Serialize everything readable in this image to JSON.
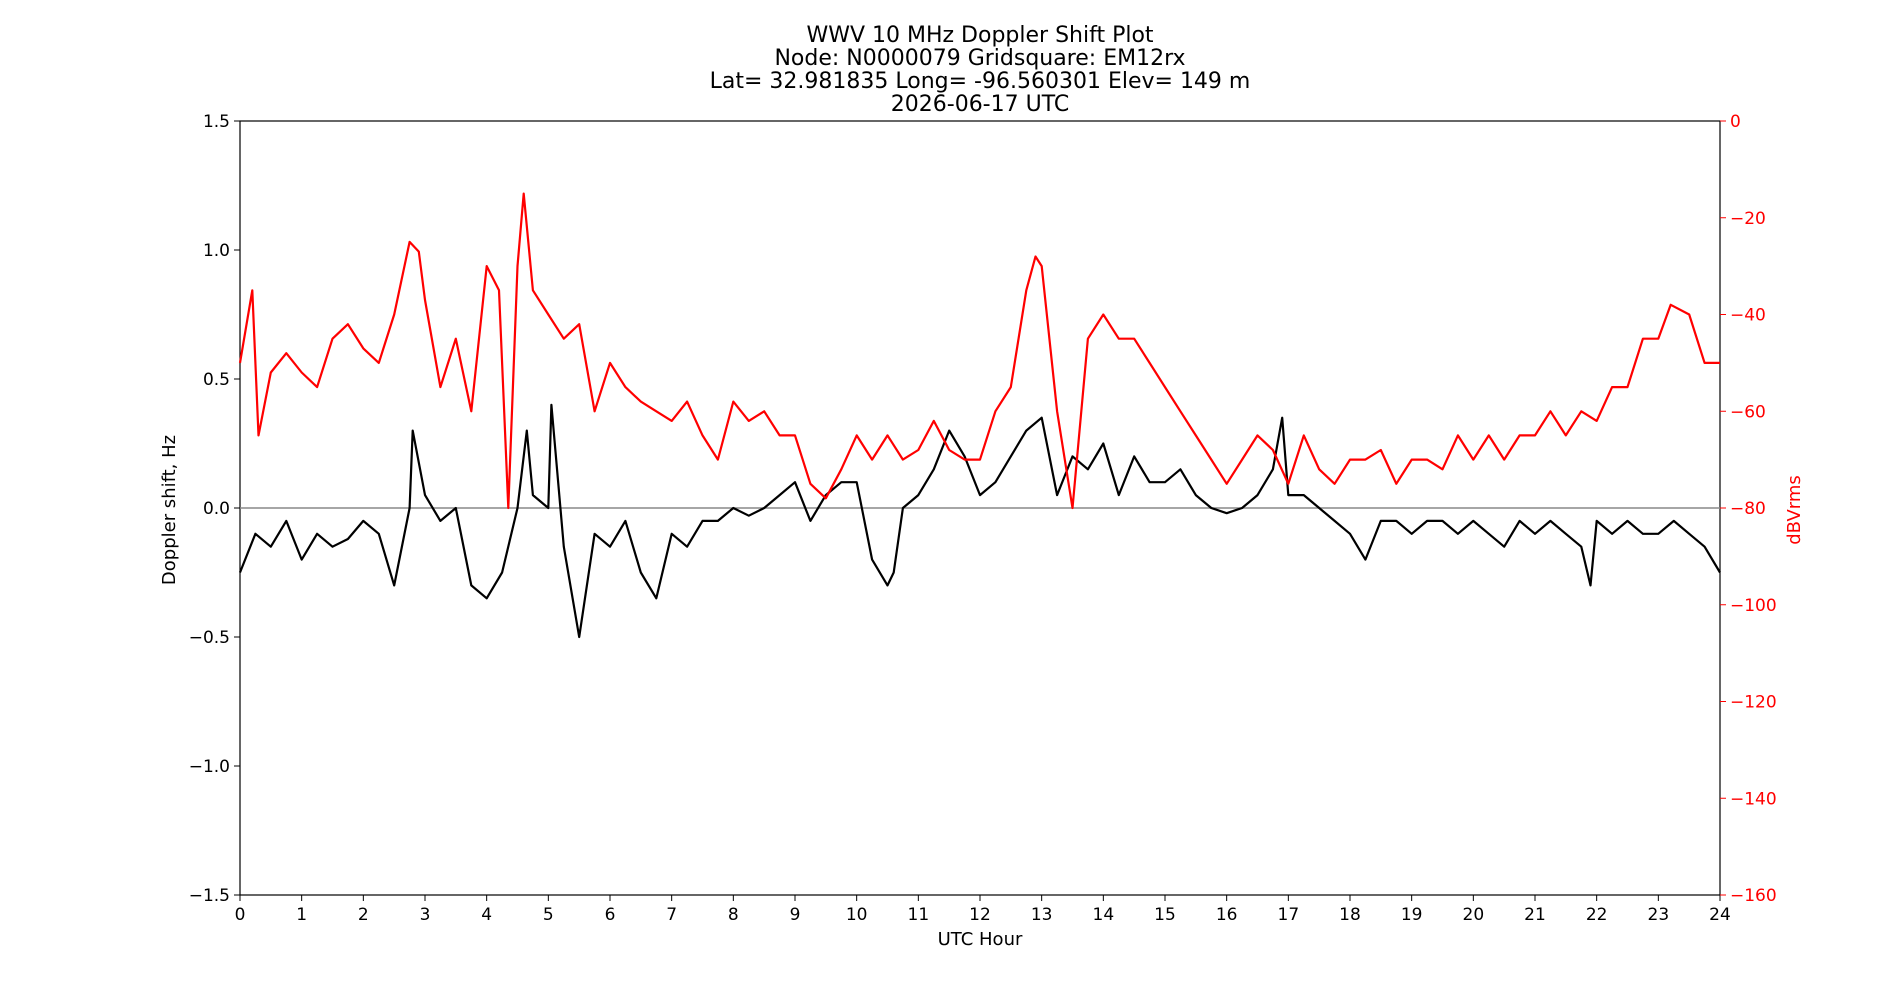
{
  "chart_data": {
    "type": "line",
    "title_lines": [
      "WWV 10 MHz Doppler Shift Plot",
      "Node:  N0000079     Gridsquare:  EM12rx",
      "Lat= 32.981835    Long= -96.560301    Elev= 149 m",
      "2026-06-17  UTC"
    ],
    "xlabel": "UTC Hour",
    "ylabel": "Doppler shift, Hz",
    "y2label": "dBVrms",
    "xlim": [
      0,
      24
    ],
    "ylim": [
      -1.5,
      1.5
    ],
    "y2lim": [
      -160,
      0
    ],
    "x_ticks": [
      "0",
      "1",
      "2",
      "3",
      "4",
      "5",
      "6",
      "7",
      "8",
      "9",
      "10",
      "11",
      "12",
      "13",
      "14",
      "15",
      "16",
      "17",
      "18",
      "19",
      "20",
      "21",
      "22",
      "23",
      "24"
    ],
    "y_ticks": [
      "1.5",
      "1.0",
      "0.5",
      "0.0",
      "−0.5",
      "−1.0",
      "−1.5"
    ],
    "y2_ticks": [
      "0",
      "−20",
      "−40",
      "−60",
      "−80",
      "−100",
      "−120",
      "−140",
      "−160"
    ],
    "zero_line": 0.0,
    "grid": false,
    "colors": {
      "doppler": "#000000",
      "power": "#ff0000",
      "zero_line": "#888888",
      "y2_axis": "#ff0000"
    },
    "series": [
      {
        "axis": "left",
        "x": [
          0,
          0.25,
          0.5,
          0.75,
          1,
          1.25,
          1.5,
          1.75,
          2,
          2.25,
          2.5,
          2.75,
          2.8,
          3,
          3.25,
          3.5,
          3.75,
          4,
          4.25,
          4.5,
          4.65,
          4.75,
          5,
          5.05,
          5.25,
          5.5,
          5.75,
          6,
          6.25,
          6.5,
          6.75,
          7,
          7.25,
          7.5,
          7.75,
          8,
          8.25,
          8.5,
          8.75,
          9,
          9.25,
          9.5,
          9.75,
          10,
          10.25,
          10.5,
          10.6,
          10.75,
          11,
          11.25,
          11.5,
          11.75,
          12,
          12.25,
          12.5,
          12.75,
          13,
          13.25,
          13.5,
          13.75,
          14,
          14.25,
          14.5,
          14.75,
          15,
          15.25,
          15.5,
          15.75,
          16,
          16.25,
          16.5,
          16.75,
          16.9,
          17,
          17.25,
          17.5,
          17.75,
          18,
          18.25,
          18.5,
          18.75,
          19,
          19.25,
          19.5,
          19.75,
          20,
          20.25,
          20.5,
          20.75,
          21,
          21.25,
          21.5,
          21.75,
          21.9,
          22,
          22.25,
          22.5,
          22.75,
          23,
          23.25,
          23.5,
          23.75,
          24
        ],
        "values": [
          -0.25,
          -0.1,
          -0.15,
          -0.05,
          -0.2,
          -0.1,
          -0.15,
          -0.12,
          -0.05,
          -0.1,
          -0.3,
          0.0,
          0.3,
          0.05,
          -0.05,
          0.0,
          -0.3,
          -0.35,
          -0.25,
          0.0,
          0.3,
          0.05,
          0.0,
          0.4,
          -0.15,
          -0.5,
          -0.1,
          -0.15,
          -0.05,
          -0.25,
          -0.35,
          -0.1,
          -0.15,
          -0.05,
          -0.05,
          0.0,
          -0.03,
          0.0,
          0.05,
          0.1,
          -0.05,
          0.05,
          0.1,
          0.1,
          -0.2,
          -0.3,
          -0.25,
          0.0,
          0.05,
          0.15,
          0.3,
          0.2,
          0.05,
          0.1,
          0.2,
          0.3,
          0.35,
          0.05,
          0.2,
          0.15,
          0.25,
          0.05,
          0.2,
          0.1,
          0.1,
          0.15,
          0.05,
          0.0,
          -0.02,
          0.0,
          0.05,
          0.15,
          0.35,
          0.05,
          0.05,
          0.0,
          -0.05,
          -0.1,
          -0.2,
          -0.05,
          -0.05,
          -0.1,
          -0.05,
          -0.05,
          -0.1,
          -0.05,
          -0.1,
          -0.15,
          -0.05,
          -0.1,
          -0.05,
          -0.1,
          -0.15,
          -0.3,
          -0.05,
          -0.1,
          -0.05,
          -0.1,
          -0.1,
          -0.05,
          -0.1,
          -0.15,
          -0.25
        ]
      },
      {
        "axis": "right",
        "x": [
          0,
          0.2,
          0.3,
          0.5,
          0.75,
          1,
          1.25,
          1.5,
          1.75,
          2,
          2.25,
          2.5,
          2.75,
          2.9,
          3,
          3.25,
          3.5,
          3.75,
          4,
          4.2,
          4.35,
          4.5,
          4.6,
          4.75,
          5,
          5.25,
          5.5,
          5.75,
          6,
          6.25,
          6.5,
          6.75,
          7,
          7.25,
          7.5,
          7.75,
          8,
          8.25,
          8.5,
          8.75,
          9,
          9.25,
          9.5,
          9.75,
          10,
          10.25,
          10.5,
          10.75,
          11,
          11.25,
          11.5,
          11.75,
          12,
          12.25,
          12.5,
          12.75,
          12.9,
          13,
          13.25,
          13.5,
          13.75,
          14,
          14.25,
          14.5,
          14.75,
          15,
          15.25,
          15.5,
          15.75,
          16,
          16.25,
          16.5,
          16.75,
          17,
          17.25,
          17.5,
          17.75,
          18,
          18.25,
          18.5,
          18.75,
          19,
          19.25,
          19.5,
          19.75,
          20,
          20.25,
          20.5,
          20.75,
          21,
          21.25,
          21.5,
          21.75,
          22,
          22.25,
          22.5,
          22.75,
          23,
          23.2,
          23.5,
          23.75,
          24
        ],
        "values": [
          -50,
          -35,
          -65,
          -52,
          -48,
          -52,
          -55,
          -45,
          -42,
          -47,
          -50,
          -40,
          -25,
          -27,
          -37,
          -55,
          -45,
          -60,
          -30,
          -35,
          -80,
          -30,
          -15,
          -35,
          -40,
          -45,
          -42,
          -60,
          -50,
          -55,
          -58,
          -60,
          -62,
          -58,
          -65,
          -70,
          -58,
          -62,
          -60,
          -65,
          -65,
          -75,
          -78,
          -72,
          -65,
          -70,
          -65,
          -70,
          -68,
          -62,
          -68,
          -70,
          -70,
          -60,
          -55,
          -35,
          -28,
          -30,
          -60,
          -80,
          -45,
          -40,
          -45,
          -45,
          -50,
          -55,
          -60,
          -65,
          -70,
          -75,
          -70,
          -65,
          -68,
          -75,
          -65,
          -72,
          -75,
          -70,
          -70,
          -68,
          -75,
          -70,
          -70,
          -72,
          -65,
          -70,
          -65,
          -70,
          -65,
          -65,
          -60,
          -65,
          -60,
          -62,
          -55,
          -55,
          -45,
          -45,
          -38,
          -40,
          -50,
          -50
        ]
      }
    ]
  }
}
